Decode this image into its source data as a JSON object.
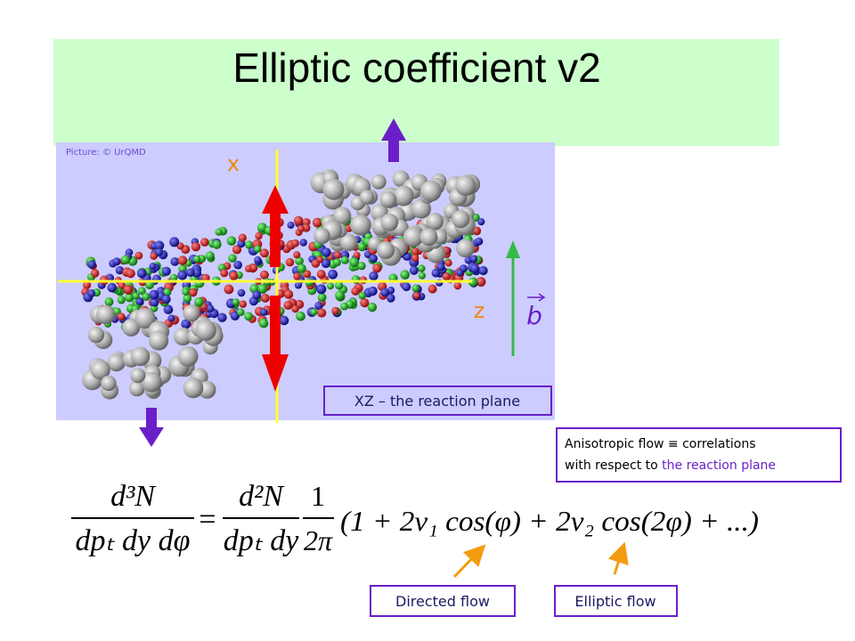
{
  "title": "Elliptic coefficient v2",
  "picture": {
    "credit": "Picture: © UrQMD",
    "x_label": "x",
    "z_label": "z",
    "b_label": "b",
    "plane_label": "XZ – the reaction plane"
  },
  "note": {
    "line1": "Anisotropic flow ≡ correlations",
    "line2_start": "with respect to ",
    "line2_highlight": "the reaction plane"
  },
  "formula": {
    "lhs_num": "d³N",
    "lhs_den": "dpₜ dy dφ",
    "equals": "=",
    "rhs_num": "d²N",
    "rhs_den": "dpₜ dy",
    "factor_num": "1",
    "factor_den": "2π",
    "series": "(1 + 2v₁ cos(φ) + 2v₂ cos(2φ) + ...)"
  },
  "labels": {
    "directed": "Directed flow",
    "elliptic": "Elliptic flow"
  }
}
